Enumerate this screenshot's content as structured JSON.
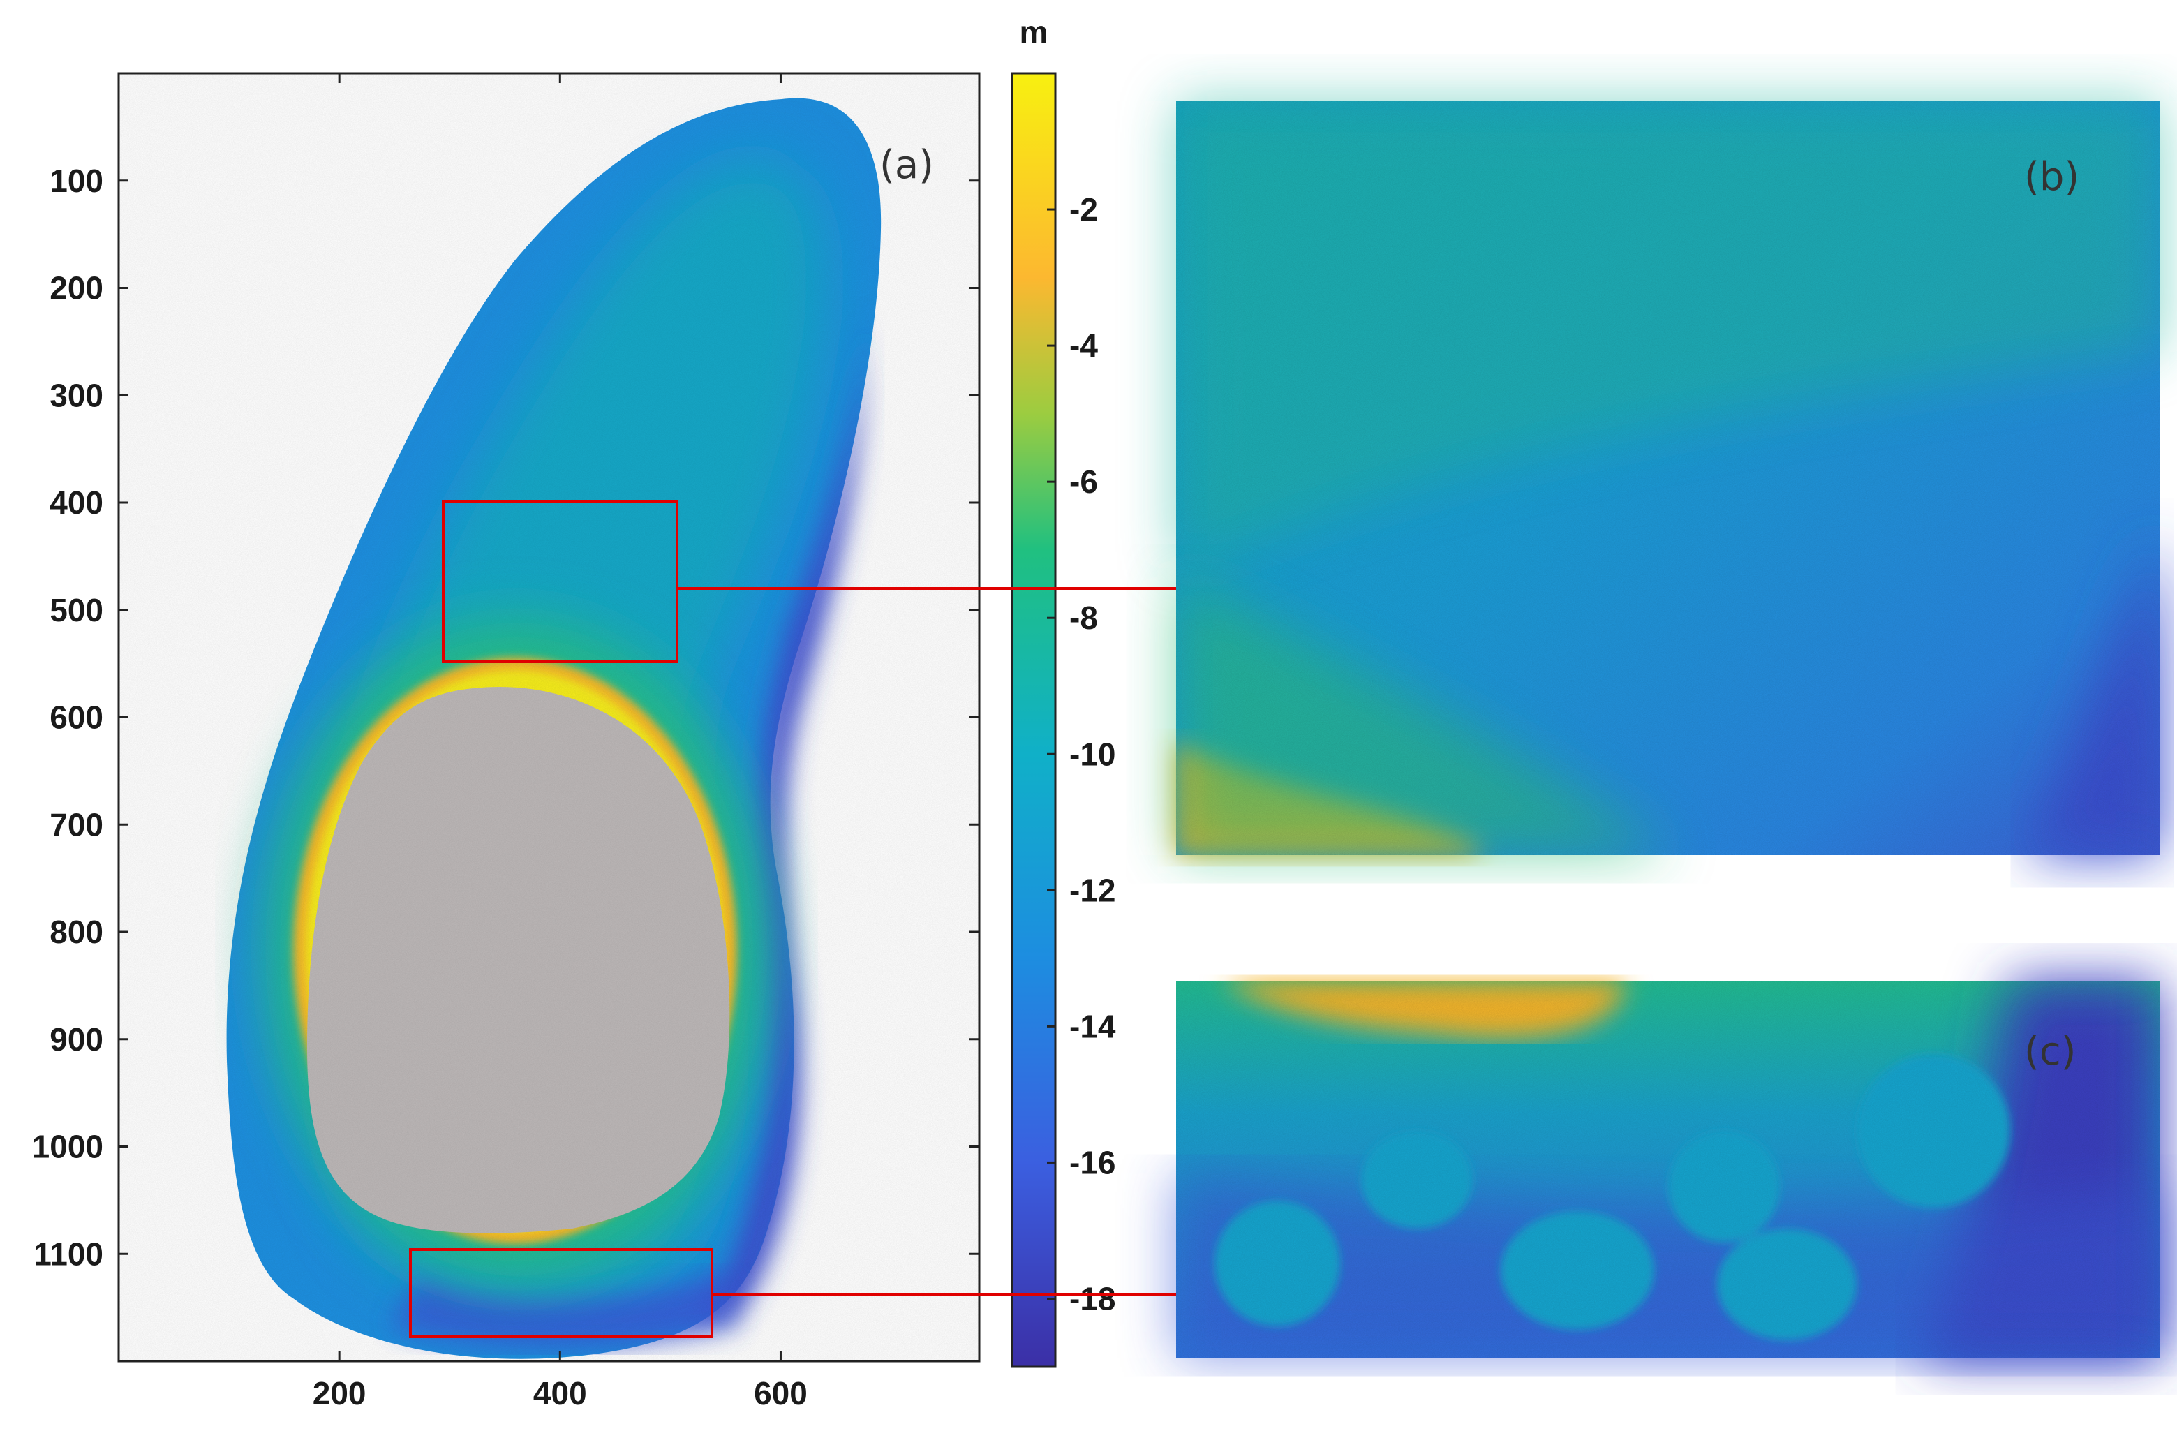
{
  "chart_data": {
    "type": "heatmap",
    "title": "",
    "xlabel": "",
    "ylabel": "",
    "x_ticks": [
      200,
      400,
      600
    ],
    "y_ticks": [
      100,
      200,
      300,
      400,
      500,
      600,
      700,
      800,
      900,
      1000,
      1100
    ],
    "xlim": [
      0,
      780
    ],
    "ylim": [
      1200,
      0
    ],
    "y_reversed": true,
    "colorbar": {
      "unit_label": "m",
      "min": -19,
      "max": 0,
      "ticks": [
        -2,
        -4,
        -6,
        -8,
        -10,
        -12,
        -14,
        -16,
        -18
      ],
      "stops": [
        {
          "value": -19,
          "color": "#3b2fa6"
        },
        {
          "value": -16,
          "color": "#3b5fe0"
        },
        {
          "value": -13,
          "color": "#1d8de0"
        },
        {
          "value": -10,
          "color": "#10b0c8"
        },
        {
          "value": -7,
          "color": "#20c080"
        },
        {
          "value": -5,
          "color": "#9ccc40"
        },
        {
          "value": -3,
          "color": "#fcb830"
        },
        {
          "value": 0,
          "color": "#f8f010"
        }
      ]
    },
    "panels": [
      {
        "label": "(a)",
        "description": "full region"
      },
      {
        "label": "(b)",
        "zoom_box": {
          "x": [
            300,
            510
          ],
          "y": [
            400,
            550
          ]
        }
      },
      {
        "label": "(c)",
        "zoom_box": {
          "x": [
            265,
            535
          ],
          "y": [
            1090,
            1170
          ]
        }
      }
    ],
    "land_mask_color": "#bdb8b8",
    "zoom_box_color": "#e00000"
  }
}
